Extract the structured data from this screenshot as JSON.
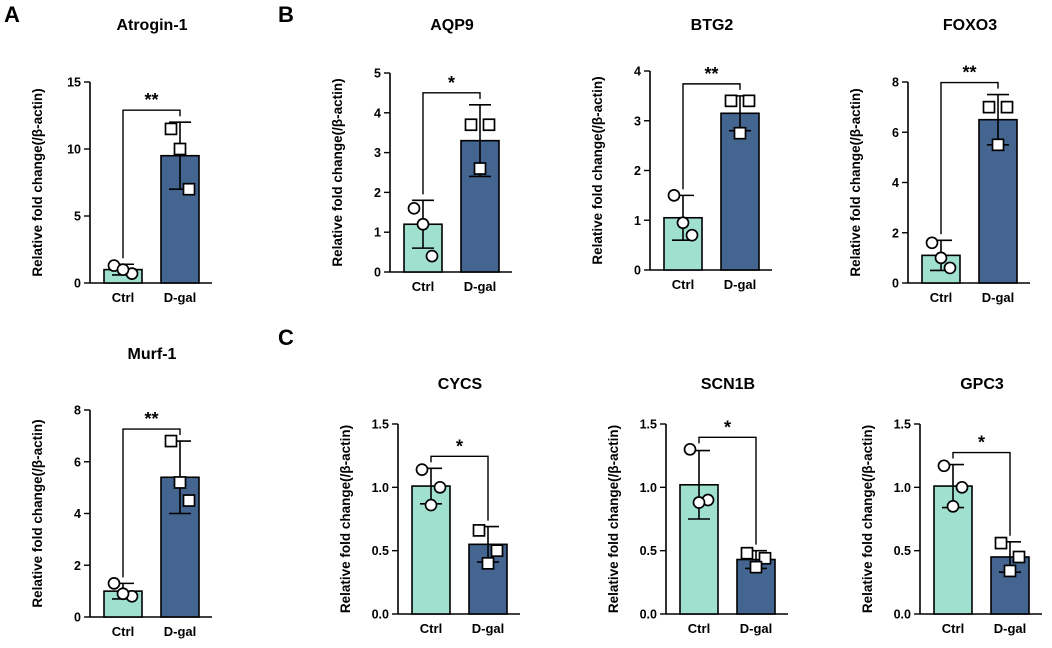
{
  "panels": {
    "A": "A",
    "B": "B",
    "C": "C"
  },
  "colors": {
    "ctrl": "#9fe0cf",
    "dgal": "#436590",
    "axis": "#000000",
    "marker_fill": "#ffffff"
  },
  "chart_data": [
    {
      "id": "atrogin",
      "type": "bar",
      "title": "Atrogin-1",
      "ylabel": "Relative fold change(/β-actin)",
      "categories": [
        "Ctrl",
        "D-gal"
      ],
      "values": [
        1.0,
        9.5
      ],
      "errors": [
        0.4,
        2.5
      ],
      "points": [
        [
          1.3,
          0.7,
          1.0
        ],
        [
          11.5,
          7.0,
          10.0
        ]
      ],
      "ylim": [
        0,
        15
      ],
      "yticks": [
        "0",
        "5",
        "10",
        "15"
      ],
      "significance": "**"
    },
    {
      "id": "murf",
      "type": "bar",
      "title": "Murf-1",
      "ylabel": "Relative fold change(/β-actin)",
      "categories": [
        "Ctrl",
        "D-gal"
      ],
      "values": [
        1.0,
        5.4
      ],
      "errors": [
        0.3,
        1.4
      ],
      "points": [
        [
          1.3,
          0.8,
          0.9
        ],
        [
          6.8,
          4.5,
          5.2
        ]
      ],
      "ylim": [
        0,
        8
      ],
      "yticks": [
        "0",
        "2",
        "4",
        "6",
        "8"
      ],
      "significance": "**"
    },
    {
      "id": "aqp9",
      "type": "bar",
      "title": "AQP9",
      "ylabel": "Relative fold change(/β-actin)",
      "categories": [
        "Ctrl",
        "D-gal"
      ],
      "values": [
        1.2,
        3.3
      ],
      "errors": [
        0.6,
        0.9
      ],
      "points": [
        [
          1.6,
          0.4,
          1.2
        ],
        [
          3.7,
          3.7,
          2.6
        ]
      ],
      "ylim": [
        0,
        5
      ],
      "yticks": [
        "0",
        "1",
        "2",
        "3",
        "4",
        "5"
      ],
      "significance": "*"
    },
    {
      "id": "btg2",
      "type": "bar",
      "title": "BTG2",
      "ylabel": "Relative fold change(/β-actin)",
      "categories": [
        "Ctrl",
        "D-gal"
      ],
      "values": [
        1.05,
        3.15
      ],
      "errors": [
        0.45,
        0.35
      ],
      "points": [
        [
          1.5,
          0.7,
          0.95
        ],
        [
          3.4,
          3.4,
          2.75
        ]
      ],
      "ylim": [
        0,
        4
      ],
      "yticks": [
        "0",
        "1",
        "2",
        "3",
        "4"
      ],
      "significance": "**"
    },
    {
      "id": "foxo3",
      "type": "bar",
      "title": "FOXO3",
      "ylabel": "Relative fold change(/β-actin)",
      "categories": [
        "Ctrl",
        "D-gal"
      ],
      "values": [
        1.1,
        6.5
      ],
      "errors": [
        0.6,
        1.0
      ],
      "points": [
        [
          1.6,
          0.6,
          1.0
        ],
        [
          7.0,
          7.0,
          5.5
        ]
      ],
      "ylim": [
        0,
        8
      ],
      "yticks": [
        "0",
        "2",
        "4",
        "6",
        "8"
      ],
      "significance": "**"
    },
    {
      "id": "cycs",
      "type": "bar",
      "title": "CYCS",
      "ylabel": "Relative fold change(/β-actin)",
      "categories": [
        "Ctrl",
        "D-gal"
      ],
      "values": [
        1.01,
        0.55
      ],
      "errors": [
        0.14,
        0.14
      ],
      "points": [
        [
          1.14,
          1.0,
          0.86
        ],
        [
          0.66,
          0.5,
          0.4
        ]
      ],
      "ylim": [
        0,
        1.5
      ],
      "yticks": [
        "0.0",
        "0.5",
        "1.0",
        "1.5"
      ],
      "significance": "*"
    },
    {
      "id": "scn1b",
      "type": "bar",
      "title": "SCN1B",
      "ylabel": "Relative fold change(/β-actin)",
      "categories": [
        "Ctrl",
        "D-gal"
      ],
      "values": [
        1.02,
        0.43
      ],
      "errors": [
        0.27,
        0.07
      ],
      "points": [
        [
          1.3,
          0.9,
          0.88
        ],
        [
          0.48,
          0.44,
          0.37
        ]
      ],
      "ylim": [
        0,
        1.5
      ],
      "yticks": [
        "0.0",
        "0.5",
        "1.0",
        "1.5"
      ],
      "significance": "*"
    },
    {
      "id": "gpc3",
      "type": "bar",
      "title": "GPC3",
      "ylabel": "Relative fold change(/β-actin)",
      "categories": [
        "Ctrl",
        "D-gal"
      ],
      "values": [
        1.01,
        0.45
      ],
      "errors": [
        0.17,
        0.12
      ],
      "points": [
        [
          1.17,
          1.0,
          0.85
        ],
        [
          0.56,
          0.45,
          0.34
        ]
      ],
      "ylim": [
        0,
        1.5
      ],
      "yticks": [
        "0.0",
        "0.5",
        "1.0",
        "1.5"
      ],
      "significance": "*"
    }
  ]
}
